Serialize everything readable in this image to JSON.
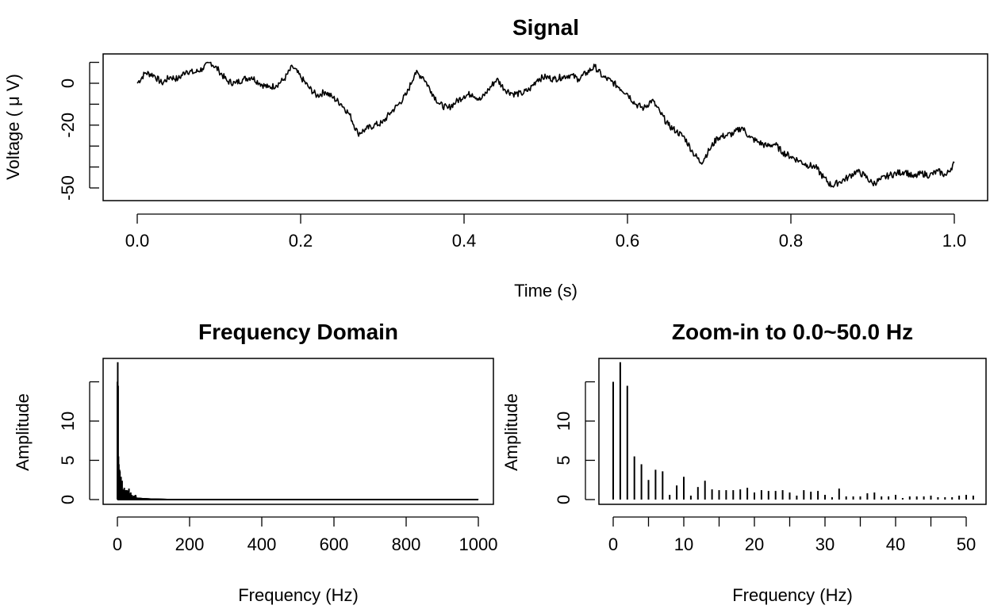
{
  "chart_data": [
    {
      "type": "line",
      "title": "Signal",
      "xlabel": "Time (s)",
      "ylabel": "Voltage ( μ V)",
      "xlim": [
        0,
        1
      ],
      "ylim": [
        -55,
        15
      ],
      "x_ticks": [
        "0.0",
        "0.2",
        "0.4",
        "0.6",
        "0.8",
        "1.0"
      ],
      "y_ticks": [
        "0",
        "-20",
        "-50"
      ],
      "y_tick_marks": [
        10,
        0,
        -10,
        -20,
        -30,
        -40,
        -50
      ],
      "grid": false,
      "x": [
        0.0,
        0.01,
        0.02,
        0.03,
        0.04,
        0.05,
        0.06,
        0.07,
        0.08,
        0.09,
        0.1,
        0.11,
        0.12,
        0.13,
        0.14,
        0.15,
        0.16,
        0.17,
        0.18,
        0.19,
        0.2,
        0.21,
        0.22,
        0.23,
        0.24,
        0.25,
        0.26,
        0.27,
        0.28,
        0.29,
        0.3,
        0.31,
        0.32,
        0.33,
        0.34,
        0.35,
        0.36,
        0.37,
        0.38,
        0.39,
        0.4,
        0.41,
        0.42,
        0.43,
        0.44,
        0.45,
        0.46,
        0.47,
        0.48,
        0.49,
        0.5,
        0.51,
        0.52,
        0.53,
        0.54,
        0.55,
        0.56,
        0.57,
        0.58,
        0.59,
        0.6,
        0.61,
        0.62,
        0.63,
        0.64,
        0.65,
        0.66,
        0.67,
        0.68,
        0.69,
        0.7,
        0.71,
        0.72,
        0.73,
        0.74,
        0.75,
        0.76,
        0.77,
        0.78,
        0.79,
        0.8,
        0.81,
        0.82,
        0.83,
        0.84,
        0.85,
        0.86,
        0.87,
        0.88,
        0.89,
        0.9,
        0.91,
        0.92,
        0.93,
        0.94,
        0.95,
        0.96,
        0.97,
        0.98,
        0.99,
        1.0
      ],
      "y": [
        0,
        5,
        4,
        0,
        3,
        2,
        6,
        5,
        7,
        10,
        6,
        1,
        0,
        2,
        3,
        0,
        -2,
        -1,
        2,
        8,
        3,
        -2,
        -6,
        -4,
        -7,
        -10,
        -15,
        -24,
        -22,
        -20,
        -19,
        -14,
        -10,
        -5,
        5,
        3,
        -4,
        -10,
        -12,
        -9,
        -6,
        -5,
        -8,
        -3,
        2,
        -3,
        -5,
        -5,
        -3,
        2,
        3,
        2,
        3,
        4,
        2,
        5,
        8,
        3,
        1,
        -2,
        -5,
        -10,
        -12,
        -8,
        -14,
        -20,
        -23,
        -26,
        -33,
        -38,
        -32,
        -26,
        -25,
        -24,
        -21,
        -26,
        -28,
        -30,
        -29,
        -33,
        -35,
        -37,
        -39,
        -40,
        -45,
        -49,
        -47,
        -45,
        -42,
        -44,
        -48,
        -46,
        -44,
        -43,
        -42,
        -45,
        -43,
        -44,
        -42,
        -44,
        -38
      ]
    },
    {
      "type": "bar",
      "title": "Frequency Domain",
      "xlabel": "Frequency (Hz)",
      "ylabel": "Amplitude",
      "xlim": [
        0,
        1000
      ],
      "ylim": [
        0,
        17
      ],
      "x_ticks": [
        "0",
        "200",
        "400",
        "600",
        "800",
        "1000"
      ],
      "y_ticks": [
        "0",
        "5",
        "10"
      ],
      "grid": false,
      "peak_values": [
        15,
        17.5,
        14.5,
        5.5,
        4.5,
        2.5,
        3.8,
        3.6,
        0.6,
        1.8,
        2.9,
        0.5,
        1.6,
        2.4,
        1.3,
        1.2,
        1.2,
        1.2,
        1.3,
        1.5,
        0.9,
        1.2,
        1.1,
        1.1,
        1.2,
        0.9,
        0.5,
        1.2,
        1.0,
        1.1,
        0.6,
        0.3,
        1.4,
        0.4,
        0.4,
        0.4,
        0.8,
        0.9,
        0.4,
        0.4,
        0.6,
        0.2,
        0.4,
        0.4,
        0.4,
        0.5,
        0.3,
        0.3,
        0.3,
        0.5,
        0.6,
        0.5
      ],
      "tail_note": "amplitudes decay toward 0 for frequencies above 50 Hz"
    },
    {
      "type": "bar",
      "title": "Zoom-in to 0.0~50.0 Hz",
      "xlabel": "Frequency (Hz)",
      "ylabel": "Amplitude",
      "xlim": [
        0,
        51
      ],
      "ylim": [
        0,
        17
      ],
      "x_ticks": [
        "0",
        "10",
        "20",
        "30",
        "40",
        "50"
      ],
      "y_ticks": [
        "0",
        "5",
        "10"
      ],
      "grid": false,
      "categories": [
        0,
        1,
        2,
        3,
        4,
        5,
        6,
        7,
        8,
        9,
        10,
        11,
        12,
        13,
        14,
        15,
        16,
        17,
        18,
        19,
        20,
        21,
        22,
        23,
        24,
        25,
        26,
        27,
        28,
        29,
        30,
        31,
        32,
        33,
        34,
        35,
        36,
        37,
        38,
        39,
        40,
        41,
        42,
        43,
        44,
        45,
        46,
        47,
        48,
        49,
        50,
        51
      ],
      "values": [
        15,
        17.5,
        14.5,
        5.5,
        4.5,
        2.5,
        3.8,
        3.6,
        0.6,
        1.8,
        2.9,
        0.5,
        1.6,
        2.4,
        1.3,
        1.2,
        1.2,
        1.2,
        1.3,
        1.5,
        0.9,
        1.2,
        1.1,
        1.1,
        1.2,
        0.9,
        0.5,
        1.2,
        1.0,
        1.1,
        0.6,
        0.3,
        1.4,
        0.4,
        0.4,
        0.4,
        0.8,
        0.9,
        0.4,
        0.4,
        0.6,
        0.2,
        0.4,
        0.4,
        0.4,
        0.5,
        0.3,
        0.3,
        0.3,
        0.5,
        0.6,
        0.5
      ]
    }
  ]
}
